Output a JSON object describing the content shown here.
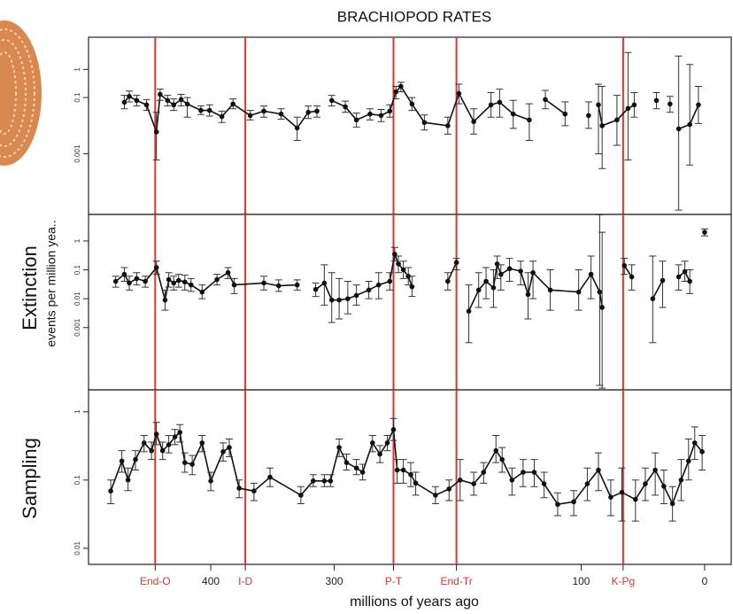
{
  "chart_data": {
    "type": "line",
    "title": "BRACHIOPOD RATES",
    "x_label": "millions of years ago",
    "xlim": [
      499,
      -23
    ],
    "xticks": [
      400,
      300,
      100,
      0
    ],
    "log_y": true,
    "grid": false,
    "events": [
      {
        "value": 445,
        "label": "End-O"
      },
      {
        "value": 372,
        "label": "I-D"
      },
      {
        "value": 252,
        "label": "P-T"
      },
      {
        "value": 201,
        "label": "End-Tr"
      },
      {
        "value": 66,
        "label": "K-Pg"
      }
    ],
    "event_color": "#e0352b",
    "color": "#111111",
    "panels": [
      {
        "ylim": [
          7e-06,
          14
        ],
        "yticks": [
          1,
          0.1,
          0.001
        ],
        "x": [
          470,
          466,
          460,
          452,
          444,
          441,
          435,
          430,
          424,
          419,
          408,
          401,
          391,
          382,
          368,
          357,
          343,
          330,
          321,
          314,
          null,
          302,
          291,
          282,
          271,
          262,
          255,
          250,
          246,
          237,
          227,
          208,
          199,
          187,
          173,
          166,
          155,
          142,
          null,
          129,
          113,
          null,
          94,
          null,
          86,
          83,
          71,
          62,
          57,
          null,
          39,
          null,
          28,
          null,
          21,
          12,
          5
        ],
        "values": [
          0.068,
          0.11,
          0.079,
          0.055,
          0.006,
          0.13,
          0.079,
          0.055,
          0.085,
          0.059,
          0.035,
          0.035,
          0.021,
          0.059,
          0.023,
          0.033,
          0.026,
          0.0083,
          0.03,
          0.033,
          null,
          0.079,
          0.047,
          0.016,
          0.026,
          0.023,
          0.033,
          0.16,
          0.25,
          0.059,
          0.013,
          0.01,
          0.14,
          0.014,
          0.055,
          0.068,
          0.026,
          0.016,
          null,
          0.085,
          0.026,
          null,
          0.023,
          null,
          0.055,
          0.01,
          0.016,
          0.041,
          0.055,
          null,
          0.079,
          null,
          0.059,
          null,
          0.0077,
          0.011,
          0.055
        ],
        "lower": [
          0.04,
          0.07,
          0.05,
          0.035,
          0.0006,
          0.08,
          0.05,
          0.035,
          0.05,
          0.02,
          0.025,
          0.022,
          0.013,
          0.04,
          0.016,
          0.02,
          0.017,
          0.003,
          0.018,
          0.02,
          null,
          0.05,
          0.03,
          0.009,
          0.016,
          0.014,
          0.02,
          0.09,
          0.16,
          0.035,
          0.007,
          0.005,
          0.06,
          0.005,
          0.02,
          0.02,
          0.008,
          0.003,
          null,
          0.04,
          0.01,
          null,
          0.008,
          null,
          0.001,
          0.0003,
          0.002,
          0.0006,
          0.02,
          null,
          0.04,
          null,
          0.03,
          null,
          1e-05,
          0.0004,
          0.012
        ],
        "upper": [
          0.12,
          0.17,
          0.12,
          0.085,
          0.03,
          0.2,
          0.12,
          0.09,
          0.13,
          0.1,
          0.05,
          0.055,
          0.033,
          0.09,
          0.035,
          0.05,
          0.04,
          0.02,
          0.05,
          0.05,
          null,
          0.12,
          0.075,
          0.028,
          0.04,
          0.038,
          0.055,
          0.25,
          0.35,
          0.1,
          0.024,
          0.02,
          0.3,
          0.04,
          0.15,
          0.2,
          0.08,
          0.06,
          null,
          0.18,
          0.07,
          null,
          0.07,
          null,
          0.3,
          0.25,
          0.12,
          4,
          0.15,
          null,
          0.15,
          null,
          0.11,
          null,
          3,
          1.5,
          0.25
        ]
      },
      {
        "ylabel": "Extinction",
        "ylabel2": "events per million yea..",
        "ylim": [
          7e-06,
          8.3
        ],
        "yticks": [
          1,
          0.1,
          0.01,
          0.001
        ],
        "x": [
          477,
          470,
          466,
          460,
          453,
          444,
          437,
          434,
          430,
          426,
          421,
          416,
          407,
          395,
          386,
          381,
          357,
          345,
          330,
          null,
          315,
          308,
          302,
          296,
          289,
          282,
          272,
          264,
          255,
          251,
          248,
          244,
          240,
          237,
          null,
          208,
          201,
          null,
          191,
          183,
          177,
          171,
          168,
          165,
          158,
          149,
          143,
          139,
          125,
          102,
          92,
          85,
          83,
          null,
          65,
          59,
          null,
          42,
          34,
          null,
          21,
          16,
          12,
          null,
          0
        ],
        "values": [
          0.04,
          0.07,
          0.035,
          0.05,
          0.04,
          0.12,
          0.009,
          0.046,
          0.035,
          0.043,
          0.038,
          0.03,
          0.017,
          0.046,
          0.08,
          0.03,
          0.035,
          0.028,
          0.03,
          null,
          0.021,
          0.035,
          0.009,
          0.009,
          0.01,
          0.013,
          0.02,
          0.03,
          0.04,
          0.35,
          0.16,
          0.1,
          0.06,
          0.026,
          null,
          0.04,
          0.18,
          null,
          0.0037,
          0.02,
          0.04,
          0.024,
          0.16,
          0.07,
          0.11,
          0.09,
          0.014,
          0.08,
          0.02,
          0.017,
          0.07,
          0.017,
          0.005,
          null,
          0.14,
          0.057,
          null,
          0.01,
          0.043,
          null,
          0.057,
          0.087,
          0.04,
          null,
          2
        ],
        "lower": [
          0.025,
          0.04,
          0.02,
          0.03,
          0.025,
          0.07,
          0.004,
          0.025,
          0.02,
          0.025,
          0.02,
          0.018,
          0.01,
          0.03,
          0.05,
          0.015,
          0.02,
          0.018,
          0.02,
          null,
          0.012,
          0.006,
          0.0015,
          0.002,
          0.003,
          0.006,
          0.01,
          0.01,
          0.02,
          0.2,
          0.08,
          0.05,
          0.03,
          0.012,
          null,
          0.02,
          0.1,
          null,
          0.0003,
          0.005,
          0.01,
          0.005,
          0.05,
          0.02,
          0.04,
          0.03,
          0.002,
          0.01,
          0.004,
          0.004,
          0.01,
          1e-05,
          8e-06,
          null,
          0.07,
          0.02,
          null,
          0.0003,
          0.005,
          null,
          0.02,
          0.04,
          0.015,
          null,
          1.5
        ],
        "upper": [
          0.06,
          0.12,
          0.06,
          0.08,
          0.06,
          0.2,
          0.02,
          0.08,
          0.06,
          0.07,
          0.065,
          0.05,
          0.03,
          0.07,
          0.12,
          0.05,
          0.06,
          0.045,
          0.045,
          null,
          0.035,
          0.15,
          0.08,
          0.05,
          0.04,
          0.03,
          0.04,
          0.08,
          0.08,
          0.6,
          0.3,
          0.2,
          0.12,
          0.06,
          null,
          0.08,
          0.25,
          null,
          0.03,
          0.08,
          0.12,
          0.1,
          0.3,
          0.15,
          0.25,
          0.2,
          0.08,
          0.2,
          0.1,
          0.1,
          0.3,
          8,
          2,
          null,
          0.25,
          0.15,
          null,
          0.3,
          0.2,
          null,
          0.15,
          0.2,
          0.1,
          null,
          2.6
        ]
      },
      {
        "ylabel": "Sampling",
        "ylim": [
          0.0058,
          2.1
        ],
        "yticks": [
          1,
          0.1,
          0.01
        ],
        "x": [
          481,
          472,
          467,
          461,
          454,
          448,
          444,
          439,
          434,
          429,
          425,
          421,
          415,
          407,
          400,
          390,
          385,
          377,
          365,
          352,
          327,
          317,
          308,
          303,
          296,
          290,
          282,
          277,
          269,
          263,
          257,
          252,
          249,
          244,
          238,
          234,
          218,
          207,
          198,
          187,
          179,
          169,
          164,
          156,
          147,
          138,
          130,
          119,
          106,
          95,
          86,
          76,
          67,
          56,
          48,
          40,
          33,
          26,
          19,
          13,
          8,
          2
        ],
        "values": [
          0.069,
          0.19,
          0.1,
          0.2,
          0.35,
          0.27,
          0.47,
          0.27,
          0.33,
          0.43,
          0.5,
          0.18,
          0.17,
          0.35,
          0.097,
          0.26,
          0.3,
          0.076,
          0.069,
          0.11,
          0.06,
          0.097,
          0.097,
          0.097,
          0.3,
          0.18,
          0.15,
          0.13,
          0.35,
          0.24,
          0.35,
          0.55,
          0.14,
          0.14,
          0.12,
          0.09,
          0.06,
          0.074,
          0.1,
          0.088,
          0.13,
          0.27,
          0.2,
          0.1,
          0.13,
          0.13,
          0.088,
          0.044,
          0.048,
          0.088,
          0.14,
          0.056,
          0.066,
          0.052,
          0.088,
          0.14,
          0.081,
          0.045,
          0.1,
          0.19,
          0.35,
          0.26
        ],
        "lower": [
          0.045,
          0.13,
          0.07,
          0.14,
          0.26,
          0.2,
          0.33,
          0.2,
          0.25,
          0.33,
          0.36,
          0.13,
          0.12,
          0.26,
          0.07,
          0.19,
          0.22,
          0.055,
          0.05,
          0.08,
          0.045,
          0.08,
          0.08,
          0.08,
          0.22,
          0.14,
          0.12,
          0.1,
          0.26,
          0.18,
          0.27,
          0.38,
          0.09,
          0.09,
          0.08,
          0.06,
          0.045,
          0.05,
          0.05,
          0.06,
          0.09,
          0.18,
          0.13,
          0.06,
          0.08,
          0.08,
          0.055,
          0.03,
          0.03,
          0.05,
          0.07,
          0.03,
          0.025,
          0.025,
          0.05,
          0.06,
          0.045,
          0.025,
          0.05,
          0.1,
          0.2,
          0.14
        ],
        "upper": [
          0.1,
          0.27,
          0.15,
          0.27,
          0.45,
          0.36,
          0.7,
          0.36,
          0.45,
          0.55,
          0.65,
          0.25,
          0.23,
          0.45,
          0.13,
          0.35,
          0.4,
          0.1,
          0.09,
          0.15,
          0.08,
          0.12,
          0.12,
          0.12,
          0.4,
          0.24,
          0.2,
          0.17,
          0.45,
          0.32,
          0.45,
          0.8,
          0.2,
          0.2,
          0.18,
          0.13,
          0.08,
          0.1,
          0.2,
          0.13,
          0.18,
          0.45,
          0.3,
          0.15,
          0.2,
          0.2,
          0.13,
          0.065,
          0.07,
          0.15,
          0.25,
          0.1,
          0.15,
          0.1,
          0.15,
          0.25,
          0.14,
          0.08,
          0.2,
          0.4,
          0.6,
          0.45
        ]
      }
    ]
  }
}
